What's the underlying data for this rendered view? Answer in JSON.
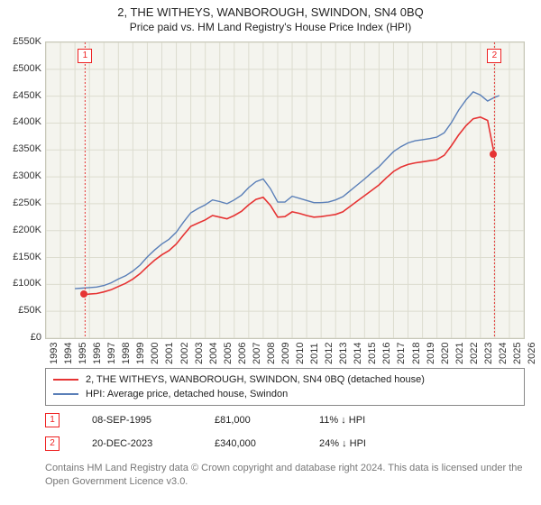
{
  "title": "2, THE WITHEYS, WANBOROUGH, SWINDON, SN4 0BQ",
  "subtitle": "Price paid vs. HM Land Registry's House Price Index (HPI)",
  "chart": {
    "type": "line",
    "background_color": "#f4f4ee",
    "border_color": "#c7c7b8",
    "grid_color": "#dcdccf",
    "ylim": [
      0,
      550000
    ],
    "ytick_step": 50000,
    "ytick_prefix": "£",
    "ytick_suffix": "K",
    "ytick_divisor": 1000,
    "xlim": [
      1993,
      2026
    ],
    "xtick_step": 1,
    "label_fontsize": 11,
    "series": [
      {
        "name": "2, THE WITHEYS, WANBOROUGH, SWINDON, SN4 0BQ (detached house)",
        "color": "#e63333",
        "width": 1.6,
        "data": [
          [
            1995.7,
            81000
          ],
          [
            1996,
            82000
          ],
          [
            1996.5,
            83000
          ],
          [
            1997,
            86000
          ],
          [
            1997.5,
            90000
          ],
          [
            1998,
            96000
          ],
          [
            1998.5,
            102000
          ],
          [
            1999,
            110000
          ],
          [
            1999.5,
            120000
          ],
          [
            2000,
            133000
          ],
          [
            2000.5,
            145000
          ],
          [
            2001,
            155000
          ],
          [
            2001.5,
            163000
          ],
          [
            2002,
            175000
          ],
          [
            2002.5,
            192000
          ],
          [
            2003,
            208000
          ],
          [
            2003.5,
            214000
          ],
          [
            2004,
            220000
          ],
          [
            2004.5,
            228000
          ],
          [
            2005,
            225000
          ],
          [
            2005.5,
            222000
          ],
          [
            2006,
            228000
          ],
          [
            2006.5,
            236000
          ],
          [
            2007,
            248000
          ],
          [
            2007.5,
            258000
          ],
          [
            2008,
            262000
          ],
          [
            2008.5,
            247000
          ],
          [
            2009,
            225000
          ],
          [
            2009.5,
            226000
          ],
          [
            2010,
            235000
          ],
          [
            2010.5,
            232000
          ],
          [
            2011,
            228000
          ],
          [
            2011.5,
            225000
          ],
          [
            2012,
            226000
          ],
          [
            2012.5,
            228000
          ],
          [
            2013,
            230000
          ],
          [
            2013.5,
            235000
          ],
          [
            2014,
            245000
          ],
          [
            2014.5,
            255000
          ],
          [
            2015,
            265000
          ],
          [
            2015.5,
            275000
          ],
          [
            2016,
            285000
          ],
          [
            2016.5,
            298000
          ],
          [
            2017,
            310000
          ],
          [
            2017.5,
            318000
          ],
          [
            2018,
            323000
          ],
          [
            2018.5,
            326000
          ],
          [
            2019,
            328000
          ],
          [
            2019.5,
            330000
          ],
          [
            2020,
            332000
          ],
          [
            2020.5,
            340000
          ],
          [
            2021,
            358000
          ],
          [
            2021.5,
            378000
          ],
          [
            2022,
            395000
          ],
          [
            2022.5,
            408000
          ],
          [
            2023,
            411000
          ],
          [
            2023.5,
            405000
          ],
          [
            2023.97,
            340000
          ]
        ]
      },
      {
        "name": "HPI: Average price, detached house, Swindon",
        "color": "#5a7fb8",
        "width": 1.4,
        "data": [
          [
            1995,
            92000
          ],
          [
            1995.5,
            93000
          ],
          [
            1996,
            94000
          ],
          [
            1996.5,
            95000
          ],
          [
            1997,
            98000
          ],
          [
            1997.5,
            103000
          ],
          [
            1998,
            110000
          ],
          [
            1998.5,
            116000
          ],
          [
            1999,
            125000
          ],
          [
            1999.5,
            136000
          ],
          [
            2000,
            151000
          ],
          [
            2000.5,
            164000
          ],
          [
            2001,
            175000
          ],
          [
            2001.5,
            184000
          ],
          [
            2002,
            197000
          ],
          [
            2002.5,
            216000
          ],
          [
            2003,
            233000
          ],
          [
            2003.5,
            241000
          ],
          [
            2004,
            248000
          ],
          [
            2004.5,
            257000
          ],
          [
            2005,
            254000
          ],
          [
            2005.5,
            250000
          ],
          [
            2006,
            257000
          ],
          [
            2006.5,
            266000
          ],
          [
            2007,
            280000
          ],
          [
            2007.5,
            291000
          ],
          [
            2008,
            296000
          ],
          [
            2008.5,
            278000
          ],
          [
            2009,
            253000
          ],
          [
            2009.5,
            253000
          ],
          [
            2010,
            264000
          ],
          [
            2010.5,
            260000
          ],
          [
            2011,
            256000
          ],
          [
            2011.5,
            252000
          ],
          [
            2012,
            252000
          ],
          [
            2012.5,
            253000
          ],
          [
            2013,
            257000
          ],
          [
            2013.5,
            263000
          ],
          [
            2014,
            274000
          ],
          [
            2014.5,
            285000
          ],
          [
            2015,
            296000
          ],
          [
            2015.5,
            308000
          ],
          [
            2016,
            319000
          ],
          [
            2016.5,
            333000
          ],
          [
            2017,
            347000
          ],
          [
            2017.5,
            356000
          ],
          [
            2018,
            363000
          ],
          [
            2018.5,
            367000
          ],
          [
            2019,
            369000
          ],
          [
            2019.5,
            371000
          ],
          [
            2020,
            374000
          ],
          [
            2020.5,
            382000
          ],
          [
            2021,
            401000
          ],
          [
            2021.5,
            424000
          ],
          [
            2022,
            443000
          ],
          [
            2022.5,
            458000
          ],
          [
            2023,
            452000
          ],
          [
            2023.5,
            441000
          ],
          [
            2024,
            448000
          ],
          [
            2024.3,
            451000
          ]
        ]
      }
    ],
    "sale_markers": [
      {
        "n": "1",
        "x": 1995.7,
        "y": 81000
      },
      {
        "n": "2",
        "x": 2023.97,
        "y": 340000
      }
    ]
  },
  "legend": {
    "series1": "2, THE WITHEYS, WANBOROUGH, SWINDON, SN4 0BQ (detached house)",
    "series2": "HPI: Average price, detached house, Swindon",
    "color1": "#e63333",
    "color2": "#5a7fb8"
  },
  "transactions": [
    {
      "n": "1",
      "date": "08-SEP-1995",
      "price": "£81,000",
      "delta": "11% ↓ HPI"
    },
    {
      "n": "2",
      "date": "20-DEC-2023",
      "price": "£340,000",
      "delta": "24% ↓ HPI"
    }
  ],
  "attribution": "Contains HM Land Registry data © Crown copyright and database right 2024. This data is licensed under the Open Government Licence v3.0."
}
